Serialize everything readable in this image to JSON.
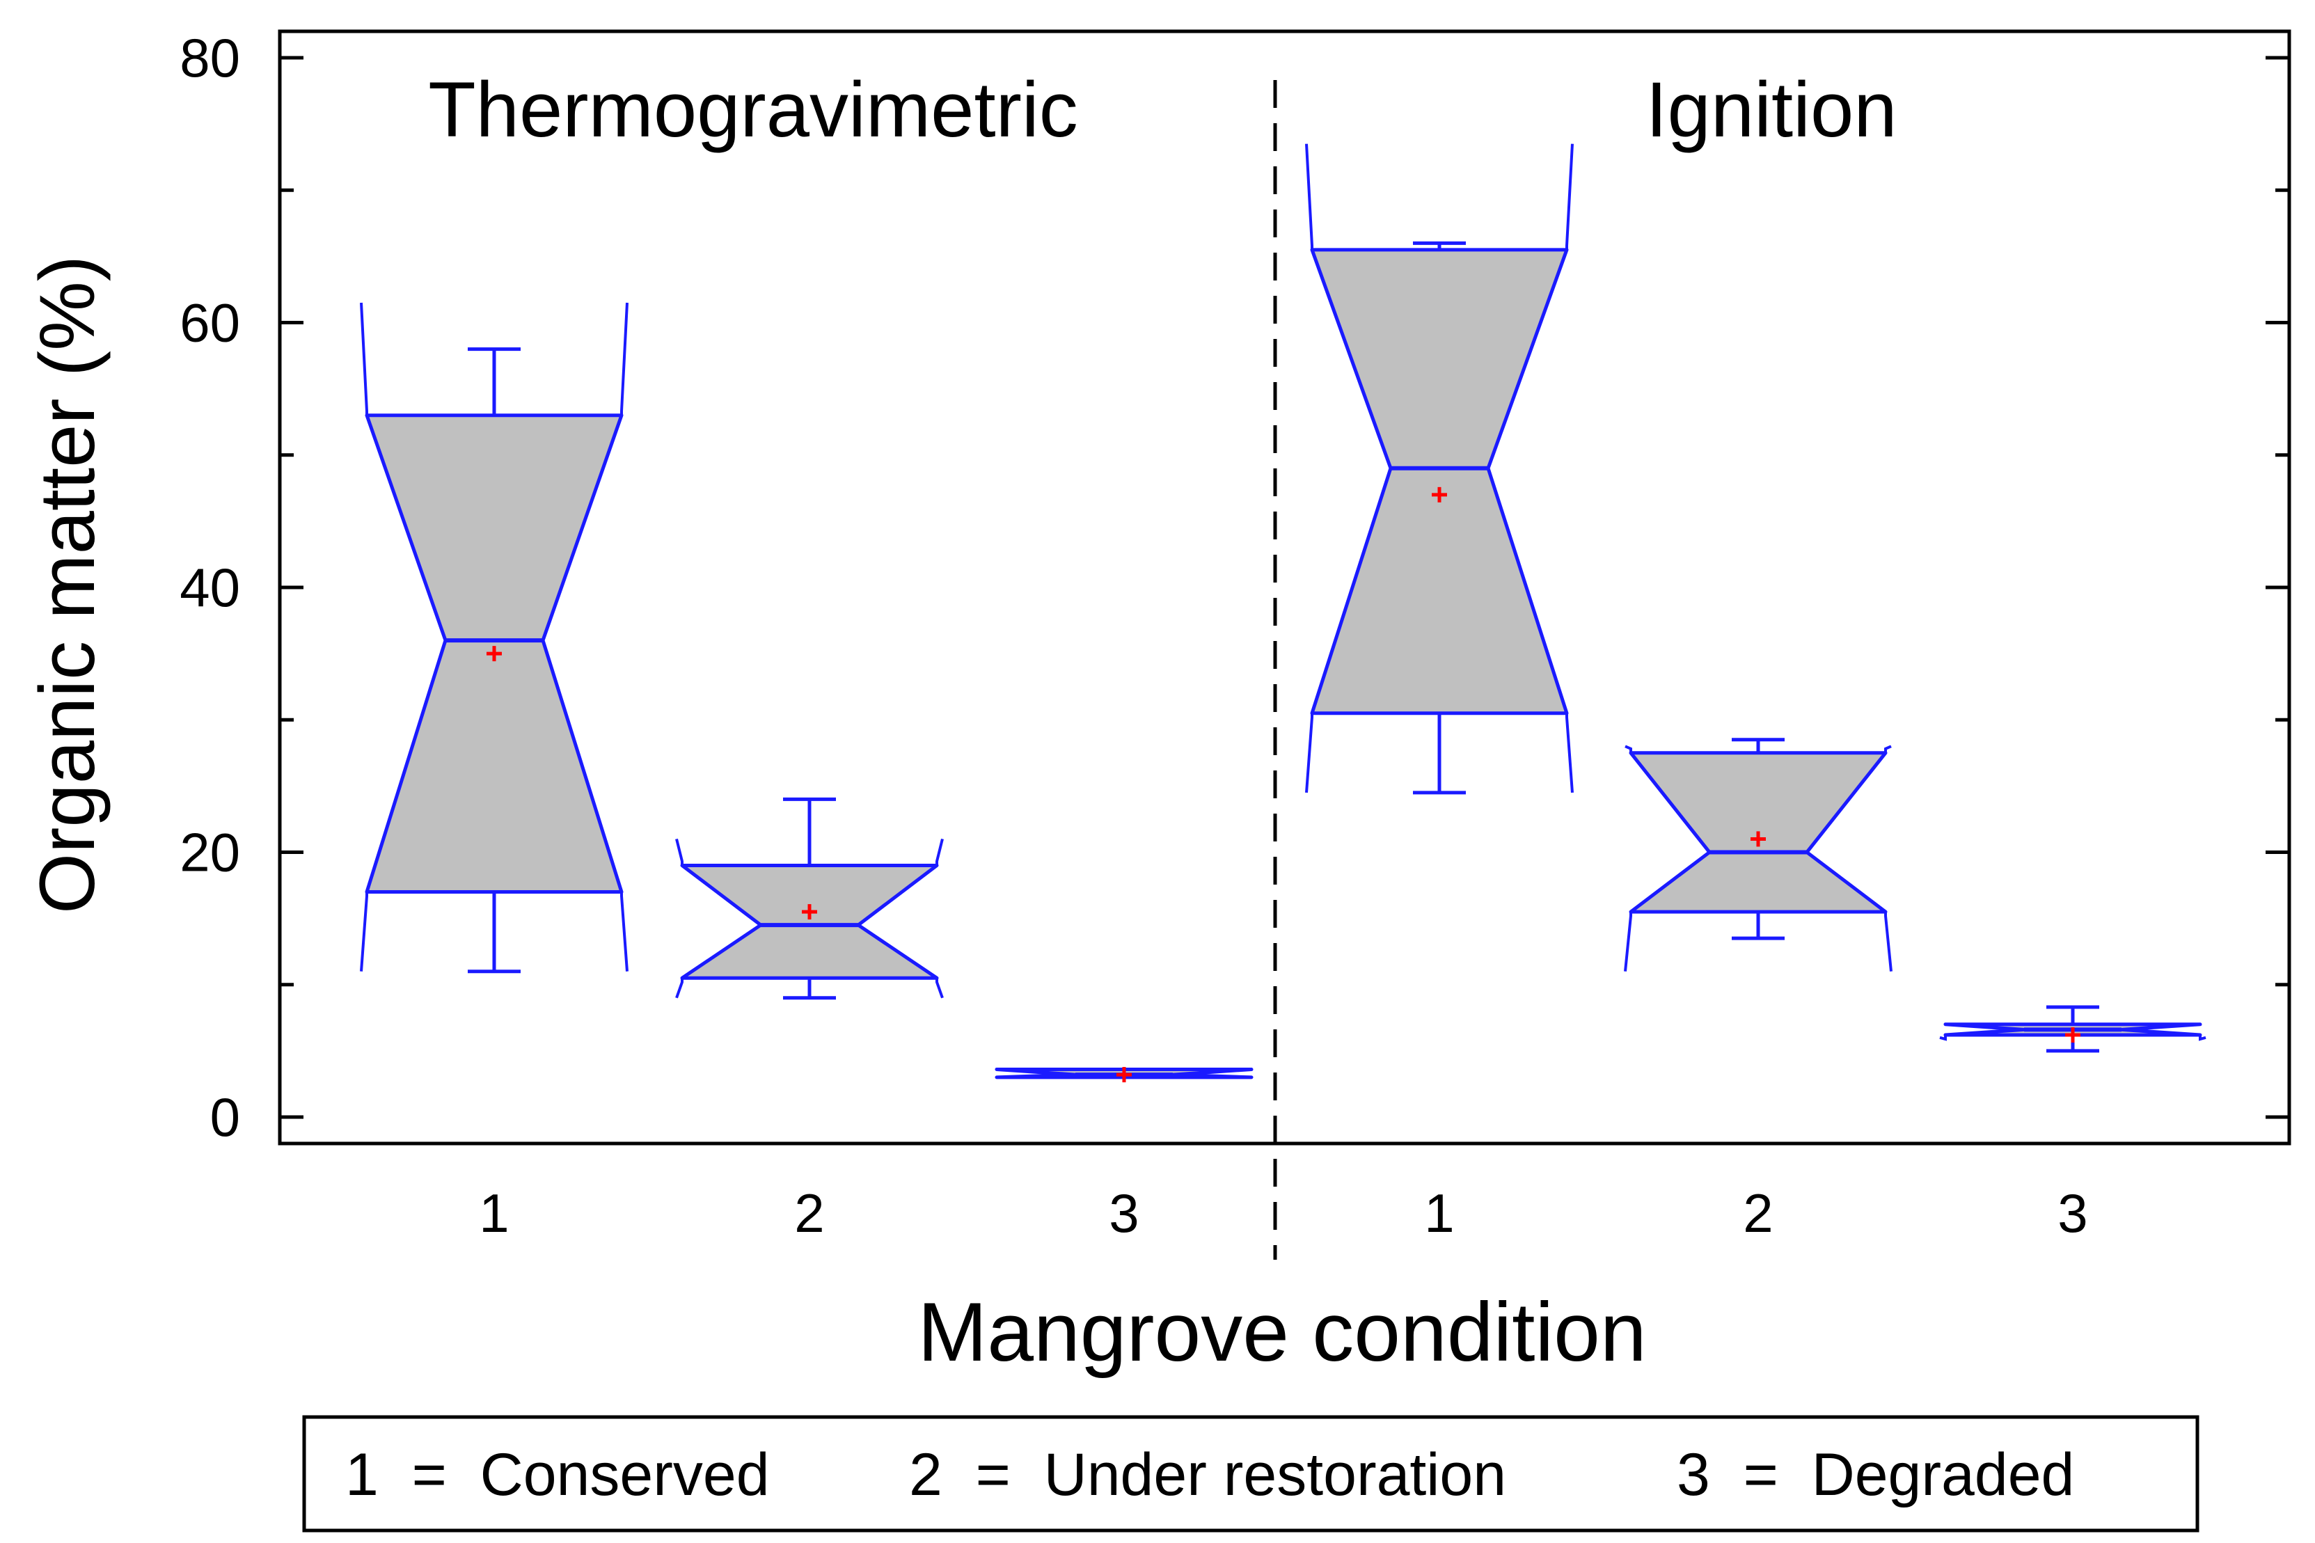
{
  "chart_data": {
    "type": "box",
    "ylabel": "Organic matter (%)",
    "xlabel": "Mangrove condition",
    "ylim": [
      -2,
      82
    ],
    "yticks": [
      0,
      20,
      40,
      60,
      80
    ],
    "panels": [
      {
        "title": "Thermogravimetric",
        "categories": [
          "1",
          "2",
          "3"
        ],
        "boxes": [
          {
            "category": "1",
            "whisker_low": 11,
            "q1": 17,
            "median": 36,
            "q3": 53,
            "whisker_high": 58,
            "mean": 35,
            "notch_low": 11,
            "notch_high": 61.5
          },
          {
            "category": "2",
            "whisker_low": 9,
            "q1": 10.5,
            "median": 14.5,
            "q3": 19,
            "whisker_high": 24,
            "mean": 15.5,
            "notch_low": 9,
            "notch_high": 21
          },
          {
            "category": "3",
            "whisker_low": 3,
            "q1": 3,
            "median": 3.2,
            "q3": 3.6,
            "whisker_high": 3.6,
            "mean": 3.2,
            "notch_low": 3,
            "notch_high": 3.6
          }
        ]
      },
      {
        "title": "Ignition",
        "categories": [
          "1",
          "2",
          "3"
        ],
        "boxes": [
          {
            "category": "1",
            "whisker_low": 24.5,
            "q1": 30.5,
            "median": 49,
            "q3": 65.5,
            "whisker_high": 66,
            "mean": 47,
            "notch_low": 24.5,
            "notch_high": 73.5
          },
          {
            "category": "2",
            "whisker_low": 13.5,
            "q1": 15.5,
            "median": 20,
            "q3": 27.5,
            "whisker_high": 28.5,
            "mean": 21,
            "notch_low": 11,
            "notch_high": 28
          },
          {
            "category": "3",
            "whisker_low": 5,
            "q1": 6.2,
            "median": 6.6,
            "q3": 7,
            "whisker_high": 8.3,
            "mean": 6.2,
            "notch_low": 6,
            "notch_high": 7
          }
        ]
      }
    ],
    "legend": {
      "placement": "bottom",
      "entries": [
        "1  =  Conserved",
        "2  =  Under restoration",
        "3  =  Degraded"
      ]
    },
    "colors": {
      "box_fill": "#c0c0c0",
      "box_stroke": "#1a1aff",
      "mean_marker": "#ff0000",
      "ylabel": "#000000",
      "axis": "#000000"
    }
  }
}
